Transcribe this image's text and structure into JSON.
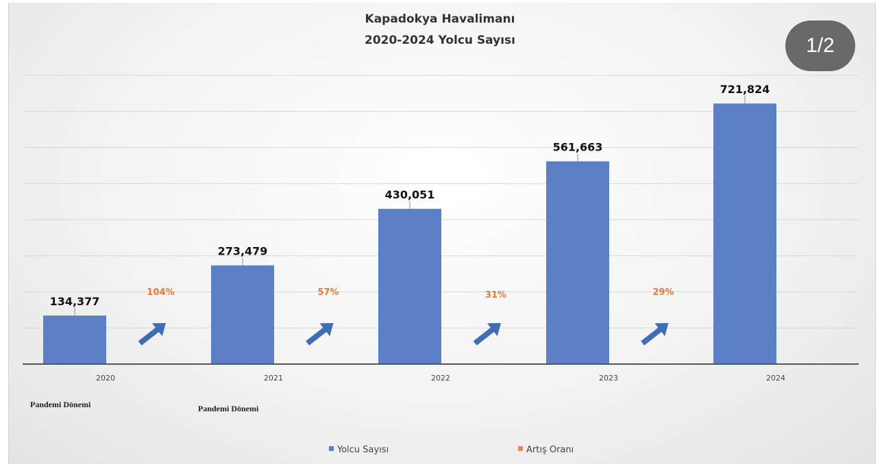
{
  "page_indicator": "1/2",
  "colors": {
    "bar": "#5b80c6",
    "arrow": "#3f6eb5",
    "percent": "#e07b39",
    "legend_series": "#5b80c6",
    "legend_rate": "#e08a52"
  },
  "chart_data": {
    "type": "bar",
    "title": [
      "Kapadokya Havalimanı",
      "2020-2024 Yolcu Sayısı"
    ],
    "categories": [
      "2020",
      "2021",
      "2022",
      "2023",
      "2024"
    ],
    "series": [
      {
        "name": "Yolcu Sayısı",
        "values": [
          134377,
          273479,
          430051,
          561663,
          721824
        ],
        "labels": [
          "134,377",
          "273,479",
          "430,051",
          "561,663",
          "721,824"
        ]
      }
    ],
    "growth": {
      "name": "Artış Oranı",
      "values": [
        104,
        57,
        31,
        29
      ],
      "labels": [
        "104%",
        "57%",
        "31%",
        "29%"
      ]
    },
    "notes": [
      {
        "category": "2020",
        "text": "Pandemi Dönemi"
      },
      {
        "category": "2021",
        "text": "Pandemi Dönemi"
      }
    ],
    "ylim": [
      0,
      800000
    ],
    "grid": true,
    "legend_position": "bottom"
  }
}
